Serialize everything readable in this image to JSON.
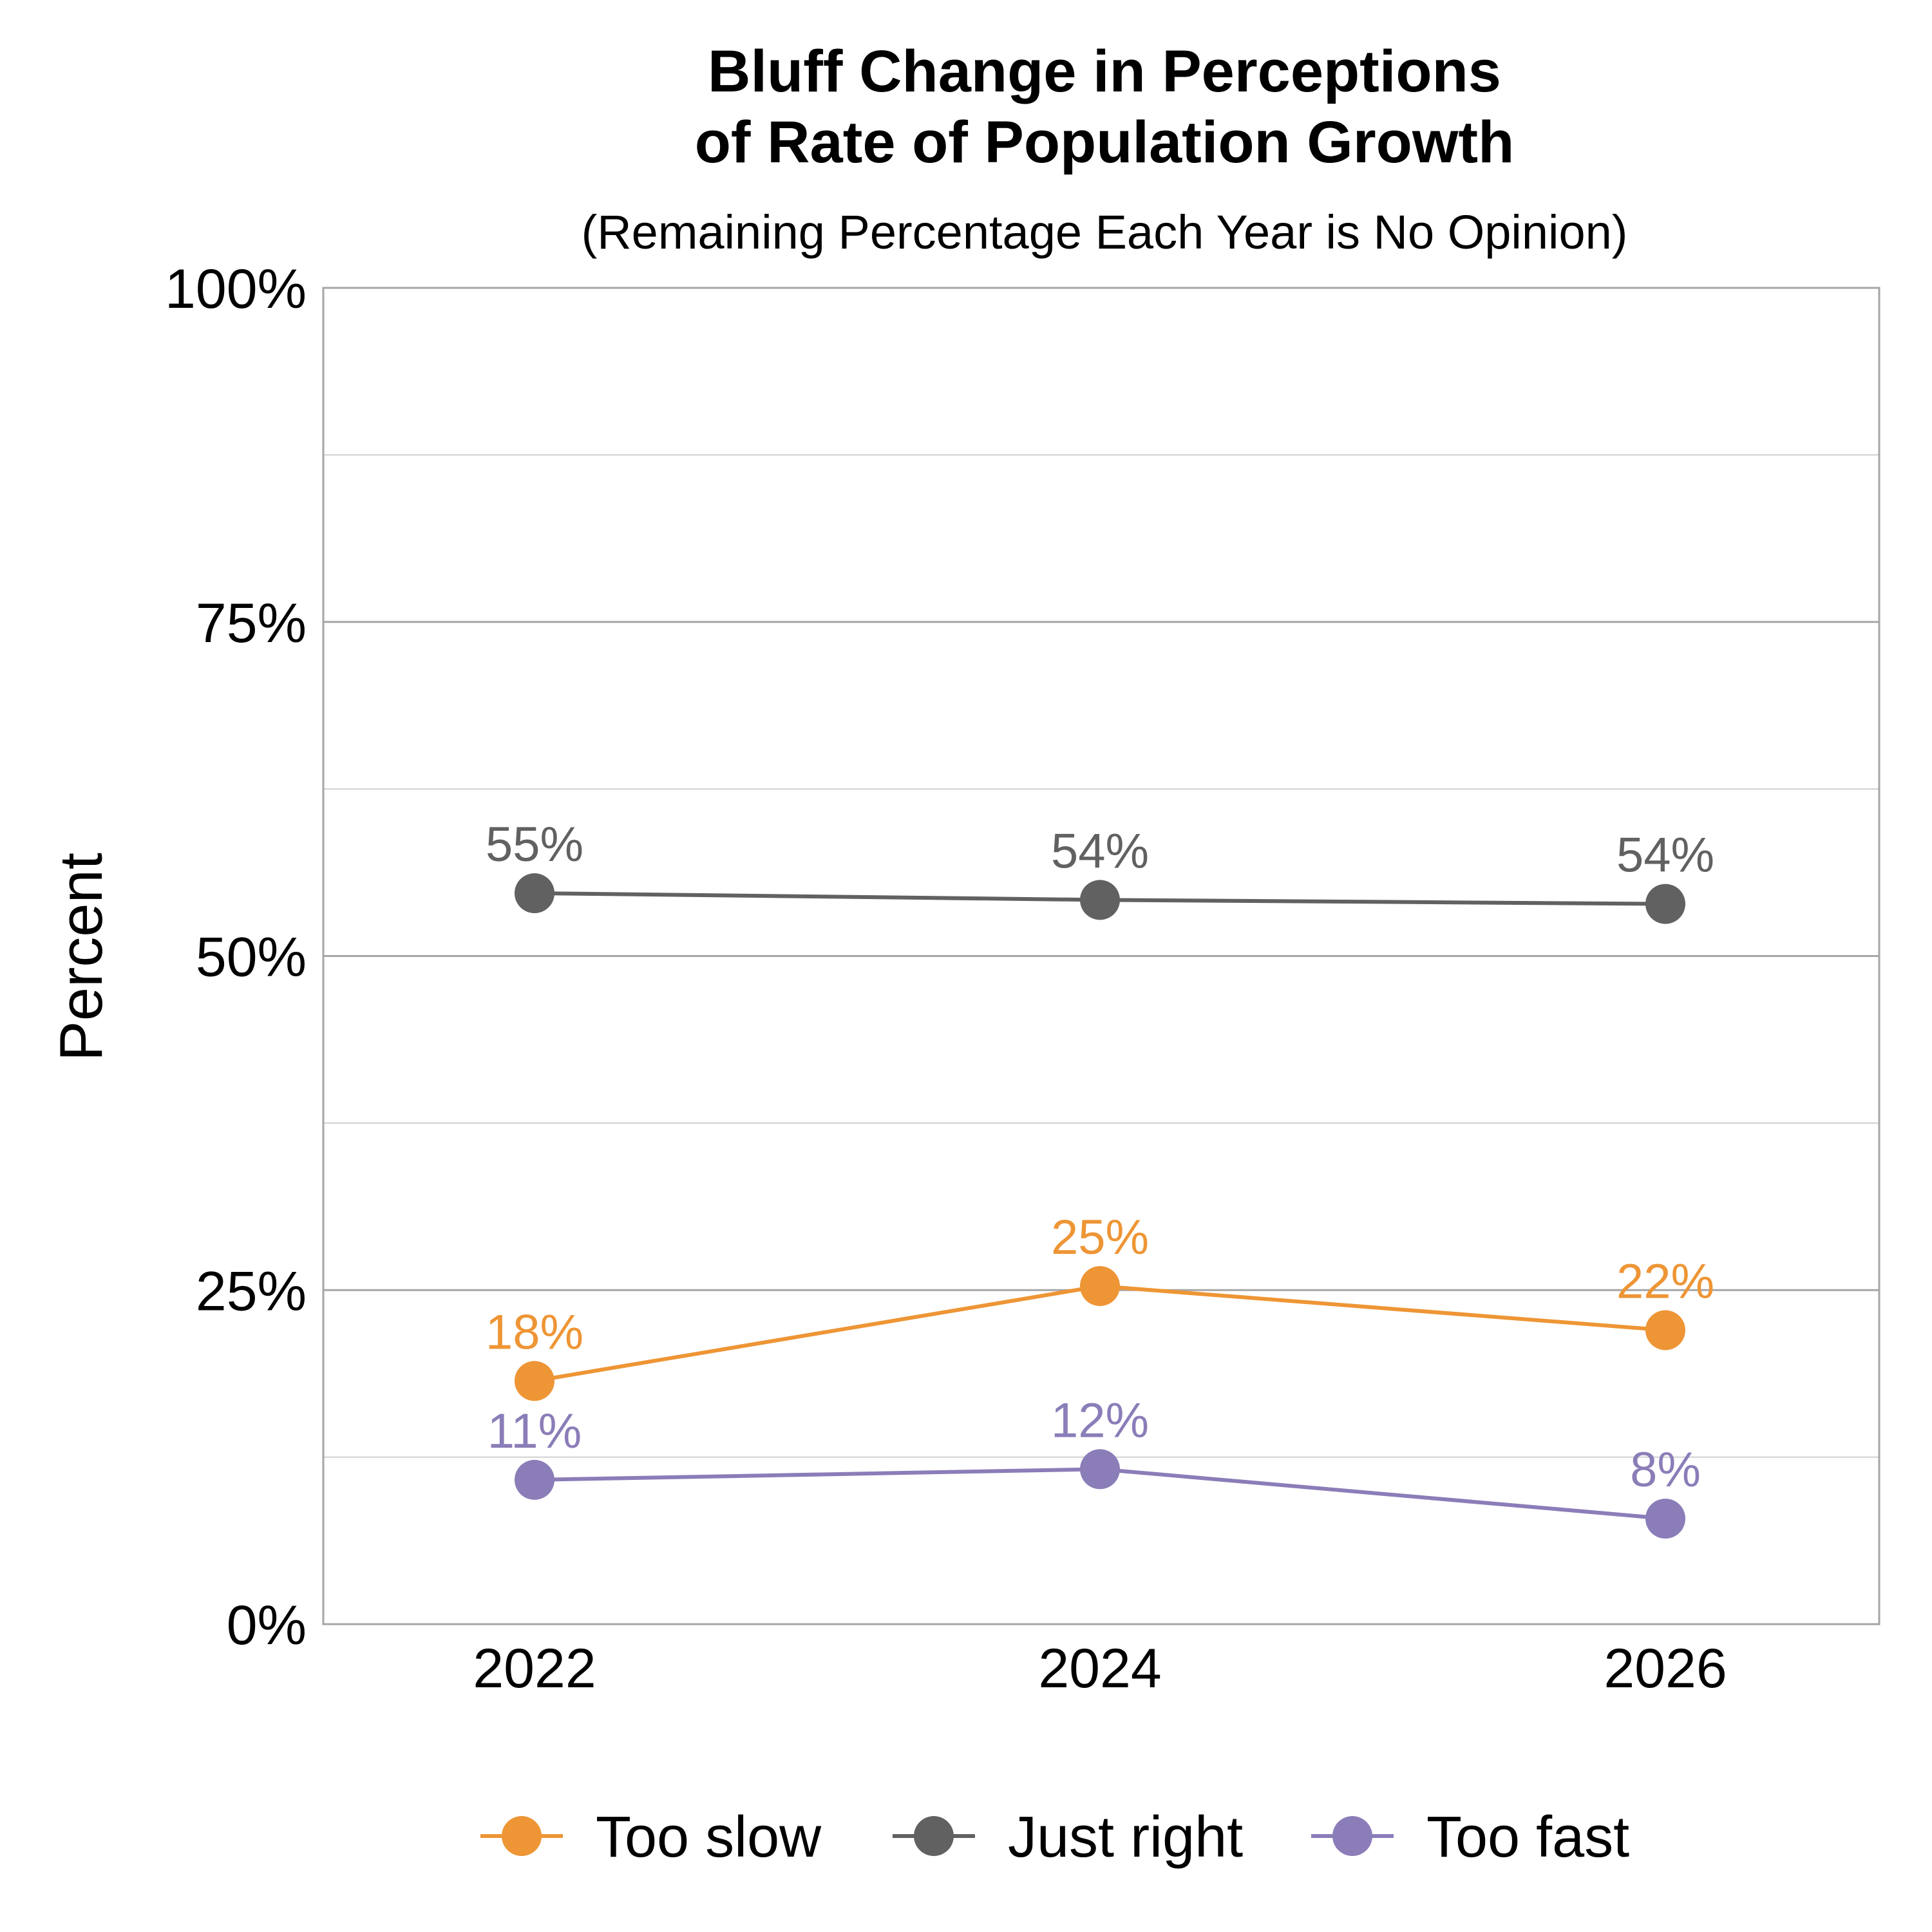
{
  "chart_data": {
    "type": "line",
    "title": [
      "Bluff Change in Perceptions",
      "of Rate of Population Growth"
    ],
    "subtitle": "(Remaining Percentage Each Year is No Opinion)",
    "ylabel": "Percent",
    "xlabel": "",
    "categories": [
      "2022",
      "2024",
      "2026"
    ],
    "ylim": [
      0,
      100
    ],
    "yticks": [
      0,
      25,
      50,
      75,
      100
    ],
    "ytick_labels": [
      "0%",
      "25%",
      "50%",
      "75%",
      "100%"
    ],
    "minor_gridlines": [
      12.5,
      37.5,
      62.5,
      87.5
    ],
    "grid": true,
    "legend_position": "bottom",
    "series": [
      {
        "name": "Too slow",
        "color": "#EE9535",
        "values": [
          18.2,
          25.3,
          22.0
        ],
        "labels": [
          "18%",
          "25%",
          "22%"
        ]
      },
      {
        "name": "Just right",
        "color": "#616161",
        "values": [
          54.7,
          54.2,
          53.9
        ],
        "labels": [
          "55%",
          "54%",
          "54%"
        ]
      },
      {
        "name": "Too fast",
        "color": "#8B7DB8",
        "values": [
          10.8,
          11.6,
          7.9
        ],
        "labels": [
          "11%",
          "12%",
          "8%"
        ]
      }
    ]
  }
}
